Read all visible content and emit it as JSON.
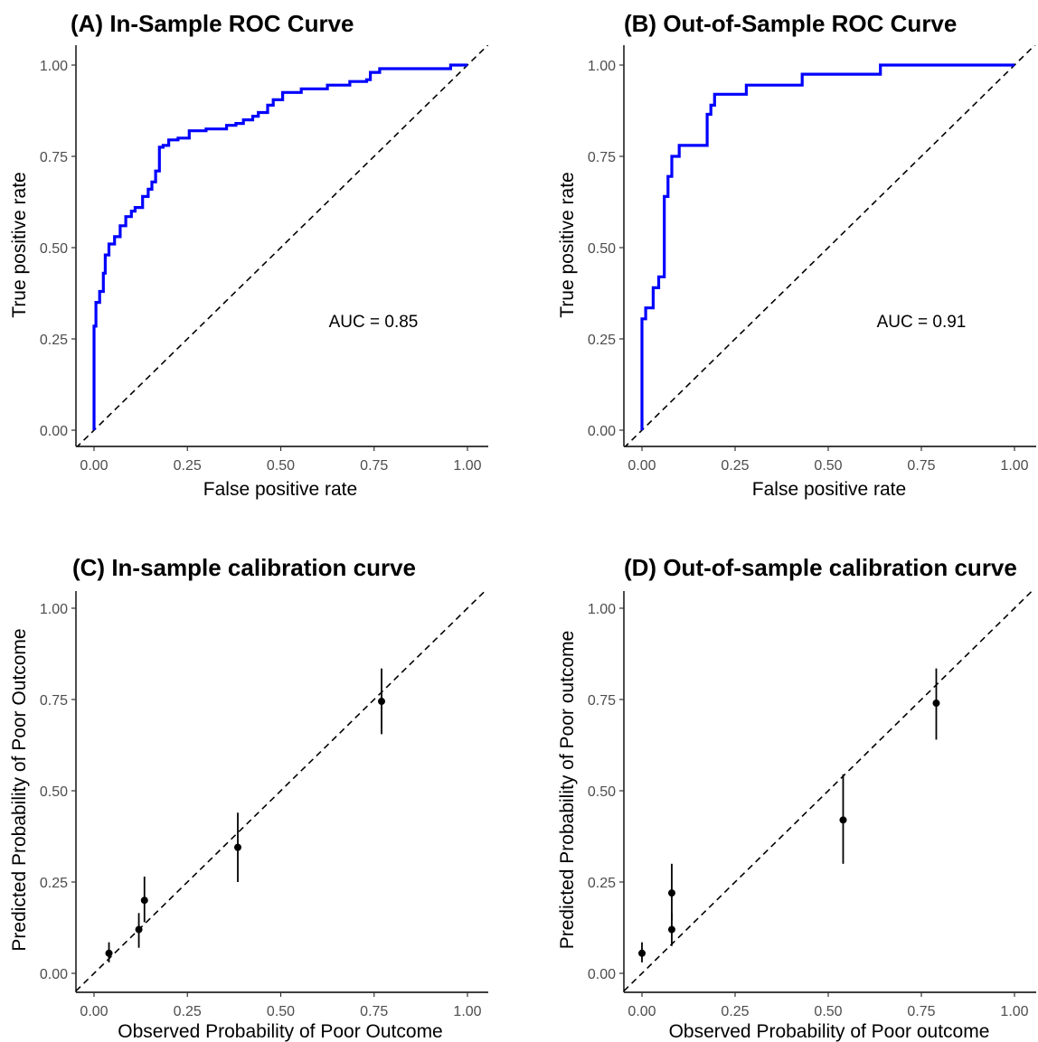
{
  "chart_data": [
    {
      "type": "line",
      "tag": "(A)",
      "title": "In-Sample ROC Curve",
      "xlabel": "False positive rate",
      "ylabel": "True positive rate",
      "xlim": [
        0,
        1
      ],
      "ylim": [
        0,
        1
      ],
      "xticks": [
        "0.00",
        "0.25",
        "0.50",
        "0.75",
        "1.00"
      ],
      "yticks": [
        "0.00",
        "0.25",
        "0.50",
        "0.75",
        "1.00"
      ],
      "annotation": "AUC = 0.85",
      "grid": false,
      "reference_line": "diagonal dashed",
      "line_color": "#0000ff",
      "series": [
        {
          "x": [
            0,
            0,
            0.005,
            0.005,
            0.015,
            0.015,
            0.025,
            0.025,
            0.03,
            0.03,
            0.04,
            0.04,
            0.055,
            0.055,
            0.07,
            0.07,
            0.085,
            0.085,
            0.1,
            0.1,
            0.11,
            0.11,
            0.13,
            0.13,
            0.145,
            0.145,
            0.155,
            0.155,
            0.165,
            0.165,
            0.175,
            0.175,
            0.185,
            0.185,
            0.2,
            0.2,
            0.225,
            0.225,
            0.255,
            0.255,
            0.3,
            0.3,
            0.355,
            0.355,
            0.38,
            0.38,
            0.4,
            0.4,
            0.425,
            0.425,
            0.44,
            0.44,
            0.465,
            0.465,
            0.48,
            0.48,
            0.505,
            0.505,
            0.555,
            0.555,
            0.625,
            0.625,
            0.685,
            0.685,
            0.73,
            0.73,
            0.74,
            0.74,
            0.765,
            0.765,
            0.955,
            0.955,
            1.0
          ],
          "y": [
            0,
            0.285,
            0.285,
            0.35,
            0.35,
            0.38,
            0.38,
            0.43,
            0.43,
            0.48,
            0.48,
            0.51,
            0.51,
            0.53,
            0.53,
            0.56,
            0.56,
            0.585,
            0.585,
            0.6,
            0.6,
            0.61,
            0.61,
            0.64,
            0.64,
            0.66,
            0.66,
            0.68,
            0.68,
            0.71,
            0.71,
            0.775,
            0.775,
            0.78,
            0.78,
            0.795,
            0.795,
            0.8,
            0.8,
            0.82,
            0.82,
            0.825,
            0.825,
            0.835,
            0.835,
            0.84,
            0.84,
            0.85,
            0.85,
            0.86,
            0.86,
            0.87,
            0.87,
            0.89,
            0.89,
            0.905,
            0.905,
            0.925,
            0.925,
            0.935,
            0.935,
            0.945,
            0.945,
            0.955,
            0.955,
            0.96,
            0.96,
            0.98,
            0.98,
            0.99,
            0.99,
            1.0,
            1.0
          ]
        }
      ]
    },
    {
      "type": "line",
      "tag": "(B)",
      "title": "Out-of-Sample ROC Curve",
      "xlabel": "False positive rate",
      "ylabel": "True positive rate",
      "xlim": [
        0,
        1
      ],
      "ylim": [
        0,
        1
      ],
      "xticks": [
        "0.00",
        "0.25",
        "0.50",
        "0.75",
        "1.00"
      ],
      "yticks": [
        "0.00",
        "0.25",
        "0.50",
        "0.75",
        "1.00"
      ],
      "annotation": "AUC = 0.91",
      "grid": false,
      "reference_line": "diagonal dashed",
      "line_color": "#0000ff",
      "series": [
        {
          "x": [
            0,
            0,
            0.01,
            0.01,
            0.03,
            0.03,
            0.045,
            0.045,
            0.06,
            0.06,
            0.07,
            0.07,
            0.08,
            0.08,
            0.1,
            0.1,
            0.175,
            0.175,
            0.185,
            0.185,
            0.195,
            0.195,
            0.28,
            0.28,
            0.43,
            0.43,
            0.64,
            0.64,
            1.0
          ],
          "y": [
            0,
            0.305,
            0.305,
            0.335,
            0.335,
            0.39,
            0.39,
            0.42,
            0.42,
            0.64,
            0.64,
            0.695,
            0.695,
            0.75,
            0.75,
            0.78,
            0.78,
            0.865,
            0.865,
            0.89,
            0.89,
            0.92,
            0.92,
            0.945,
            0.945,
            0.975,
            0.975,
            1.0,
            1.0
          ]
        }
      ]
    },
    {
      "type": "scatter",
      "tag": "(C)",
      "title": "In-sample calibration curve",
      "xlabel": "Observed Probability of Poor Outcome",
      "ylabel": "Predicted Probability of Poor Outcome",
      "xlim": [
        0,
        1
      ],
      "ylim": [
        0,
        1
      ],
      "xticks": [
        "0.00",
        "0.25",
        "0.50",
        "0.75",
        "1.00"
      ],
      "yticks": [
        "0.00",
        "0.25",
        "0.50",
        "0.75",
        "1.00"
      ],
      "grid": false,
      "reference_line": "diagonal dashed",
      "points": [
        {
          "x": 0.04,
          "y": 0.055,
          "ylow": 0.03,
          "yhigh": 0.085
        },
        {
          "x": 0.12,
          "y": 0.12,
          "ylow": 0.07,
          "yhigh": 0.165
        },
        {
          "x": 0.135,
          "y": 0.2,
          "ylow": 0.14,
          "yhigh": 0.265
        },
        {
          "x": 0.385,
          "y": 0.345,
          "ylow": 0.25,
          "yhigh": 0.44
        },
        {
          "x": 0.77,
          "y": 0.745,
          "ylow": 0.655,
          "yhigh": 0.835
        }
      ]
    },
    {
      "type": "scatter",
      "tag": "(D)",
      "title": "Out-of-sample calibration curve",
      "xlabel": "Observed Probability of Poor outcome",
      "ylabel": "Predicted Probability of Poor outcome",
      "xlim": [
        0,
        1
      ],
      "ylim": [
        0,
        1
      ],
      "xticks": [
        "0.00",
        "0.25",
        "0.50",
        "0.75",
        "1.00"
      ],
      "yticks": [
        "0.00",
        "0.25",
        "0.50",
        "0.75",
        "1.00"
      ],
      "grid": false,
      "reference_line": "diagonal dashed",
      "points": [
        {
          "x": 0.0,
          "y": 0.055,
          "ylow": 0.03,
          "yhigh": 0.085
        },
        {
          "x": 0.08,
          "y": 0.12,
          "ylow": 0.075,
          "yhigh": 0.165
        },
        {
          "x": 0.08,
          "y": 0.22,
          "ylow": 0.145,
          "yhigh": 0.3
        },
        {
          "x": 0.54,
          "y": 0.42,
          "ylow": 0.3,
          "yhigh": 0.545
        },
        {
          "x": 0.79,
          "y": 0.74,
          "ylow": 0.64,
          "yhigh": 0.835
        }
      ]
    }
  ]
}
